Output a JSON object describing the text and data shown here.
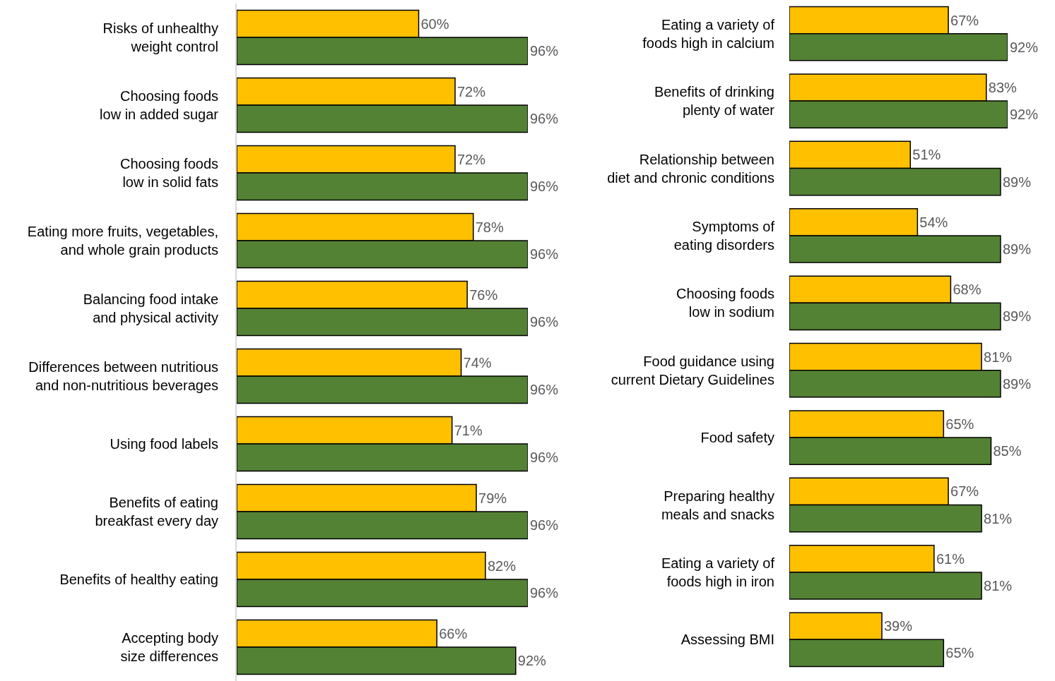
{
  "chart_data": [
    {
      "type": "bar",
      "orientation": "horizontal",
      "categories": [
        "Risks of unhealthy\nweight control",
        "Choosing foods\nlow in added sugar",
        "Choosing foods\nlow in solid fats",
        "Eating more fruits, vegetables,\nand whole grain products",
        "Balancing food intake\nand physical activity",
        "Differences between nutritious\nand non-nutritious beverages",
        "Using food labels",
        "Benefits of eating\nbreakfast every day",
        "Benefits of healthy eating",
        "Accepting body\nsize differences"
      ],
      "series": [
        {
          "color": "#ffc000",
          "values": [
            60,
            72,
            72,
            78,
            76,
            74,
            71,
            79,
            82,
            66
          ],
          "value_labels": [
            "60%",
            "72%",
            "72%",
            "78%",
            "76%",
            "74%",
            "71%",
            "79%",
            "82%",
            "66%"
          ]
        },
        {
          "color": "#548235",
          "values": [
            96,
            96,
            96,
            96,
            96,
            96,
            96,
            96,
            96,
            92
          ],
          "value_labels": [
            "96%",
            "96%",
            "96%",
            "96%",
            "96%",
            "96%",
            "96%",
            "96%",
            "96%",
            "92%"
          ]
        }
      ],
      "tick_labels": "y"
    },
    {
      "type": "bar",
      "orientation": "horizontal",
      "categories": [
        "Eating a variety of\nfoods high in calcium",
        "Benefits of drinking\nplenty of water",
        "Relationship between\ndiet and chronic conditions",
        "Symptoms of\neating disorders",
        "Choosing foods\nlow in sodium",
        "Food guidance using\ncurrent Dietary Guidelines",
        "Food safety",
        "Preparing healthy\nmeals and snacks",
        "Eating a variety of\nfoods high in iron",
        "Assessing BMI"
      ],
      "series": [
        {
          "color": "#ffc000",
          "values": [
            67,
            83,
            51,
            54,
            68,
            81,
            65,
            67,
            61,
            39
          ],
          "value_labels": [
            "67%",
            "83%",
            "51%",
            "54%",
            "68%",
            "81%",
            "65%",
            "67%",
            "61%",
            "39%"
          ]
        },
        {
          "color": "#548235",
          "values": [
            92,
            92,
            89,
            89,
            89,
            89,
            85,
            81,
            81,
            65
          ],
          "value_labels": [
            "92%",
            "92%",
            "89%",
            "89%",
            "89%",
            "89%",
            "85%",
            "81%",
            "81%",
            "65%"
          ]
        }
      ],
      "tick_labels": "y"
    }
  ]
}
